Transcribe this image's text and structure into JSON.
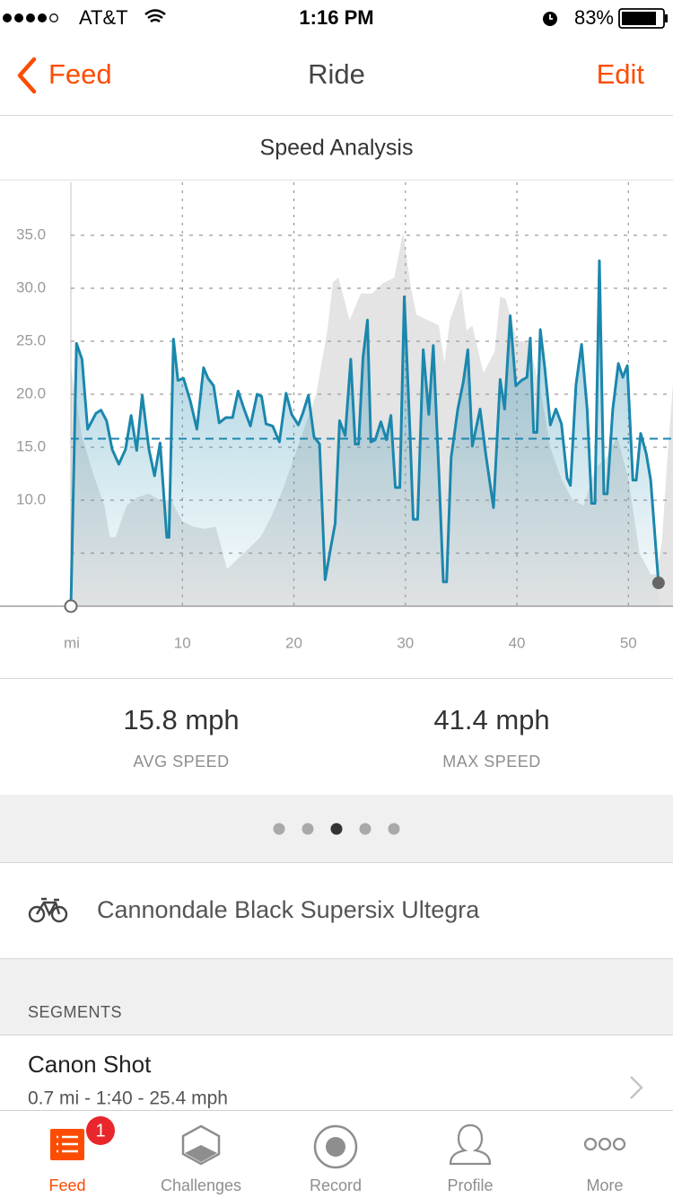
{
  "status_bar": {
    "carrier": "AT&T",
    "time": "1:16 PM",
    "battery": "83%"
  },
  "nav": {
    "back": "Feed",
    "title": "Ride",
    "action": "Edit"
  },
  "chart_data": {
    "type": "line",
    "title": "Speed Analysis",
    "xlim": [
      0,
      54
    ],
    "xticks": [
      {
        "value": 0,
        "label": "mi"
      },
      10,
      20,
      30,
      40,
      50
    ],
    "ylim": [
      0,
      40
    ],
    "yticks": [
      {
        "value": 5,
        "label": null
      },
      {
        "value": 10,
        "label": "10.0"
      },
      {
        "value": 15,
        "label": "15.0"
      },
      {
        "value": 20,
        "label": "20.0"
      },
      {
        "value": 25,
        "label": "25.0"
      },
      {
        "value": 30,
        "label": "30.0"
      },
      {
        "value": 35,
        "label": "35.0"
      }
    ],
    "grid": true,
    "series": [
      {
        "style": "area",
        "color": "#e4e4e4",
        "x": [
          0,
          1,
          2,
          3,
          3.5,
          4,
          5,
          6,
          7,
          8,
          9,
          10,
          11,
          12,
          13,
          14,
          15,
          16,
          17,
          18,
          19,
          20,
          21,
          22,
          23,
          23.5,
          24,
          25,
          26,
          27,
          28,
          29,
          29.8,
          30.5,
          31,
          32,
          33,
          33.5,
          34,
          35,
          35.5,
          36,
          37,
          38,
          38.5,
          39,
          40,
          41,
          42,
          43,
          44,
          45,
          46,
          47,
          48,
          49,
          50,
          51,
          52,
          52.5,
          53,
          53.5,
          54
        ],
        "values": [
          22.5,
          16,
          12.5,
          9.5,
          6.5,
          6.5,
          9.5,
          10.3,
          10.6,
          10,
          10,
          8,
          7.5,
          7.3,
          7.5,
          3.5,
          4.5,
          5.5,
          6.5,
          8.5,
          11,
          14,
          17,
          20,
          26,
          30.6,
          31,
          27,
          29.5,
          29.5,
          30.5,
          31,
          35.3,
          30,
          27.5,
          27,
          26.5,
          23,
          27,
          30,
          26,
          26.5,
          22,
          24,
          29.2,
          29,
          25,
          25,
          21,
          15,
          12,
          10,
          9.5,
          13,
          14,
          16,
          12,
          5,
          3,
          3,
          6,
          14,
          21
        ]
      },
      {
        "style": "line",
        "color": "#1b87ad",
        "x": [
          0,
          0.5,
          1.0,
          1.5,
          2.25,
          2.7,
          3.2,
          3.7,
          4.3,
          4.9,
          5.4,
          5.9,
          6.4,
          7.0,
          7.5,
          8.0,
          8.6,
          8.8,
          9.2,
          9.6,
          10.1,
          10.7,
          11.3,
          11.9,
          12.3,
          12.8,
          13.3,
          13.9,
          14.5,
          15.0,
          15.5,
          16.1,
          16.7,
          17.1,
          17.5,
          18.1,
          18.7,
          19.3,
          19.8,
          20.4,
          20.8,
          21.3,
          21.8,
          22.3,
          22.8,
          23.3,
          23.7,
          24.1,
          24.6,
          25.1,
          25.5,
          25.8,
          26.2,
          26.6,
          26.9,
          27.3,
          27.8,
          28.3,
          28.7,
          29.1,
          29.5,
          29.9,
          30.4,
          30.7,
          31.1,
          31.6,
          32.1,
          32.5,
          33.0,
          33.4,
          33.7,
          34.1,
          34.7,
          35.2,
          35.6,
          36.0,
          36.7,
          37.2,
          37.9,
          38.5,
          38.9,
          39.4,
          39.9,
          40.4,
          40.9,
          41.2,
          41.5,
          41.8,
          42.1,
          42.5,
          43.0,
          43.5,
          44.0,
          44.5,
          44.8,
          45.3,
          45.8,
          46.3,
          46.7,
          47.0,
          47.4,
          47.8,
          48.1,
          48.6,
          49.1,
          49.5,
          49.9,
          50.4,
          50.7,
          51.1,
          51.6,
          52.0,
          52.7
        ],
        "values": [
          0,
          24.8,
          23.3,
          16.7,
          18.2,
          18.5,
          17.5,
          14.8,
          13.4,
          14.8,
          18.0,
          14.7,
          19.9,
          14.8,
          12.3,
          15.4,
          6.5,
          6.5,
          25.2,
          21.3,
          21.5,
          19.4,
          16.7,
          22.5,
          21.5,
          20.8,
          17.3,
          17.8,
          17.8,
          20.3,
          18.7,
          17.0,
          20.0,
          19.8,
          17.2,
          17.0,
          15.5,
          20.1,
          18.1,
          17.1,
          18.2,
          19.9,
          16.0,
          15.3,
          2.5,
          5.5,
          7.8,
          17.5,
          16.1,
          23.3,
          15.3,
          15.3,
          23.5,
          27.0,
          15.5,
          15.7,
          17.4,
          15.7,
          18.0,
          11.2,
          11.2,
          29.2,
          16.7,
          8.2,
          8.2,
          24.2,
          18.1,
          24.6,
          12.7,
          2.3,
          2.3,
          14.0,
          18.6,
          21.2,
          24.2,
          15.1,
          18.6,
          14.4,
          9.3,
          21.4,
          18.6,
          27.4,
          20.8,
          21.3,
          21.6,
          25.3,
          16.4,
          16.4,
          26.1,
          22.5,
          17.1,
          18.6,
          17.2,
          12.1,
          11.4,
          20.9,
          24.7,
          18.6,
          9.7,
          9.7,
          32.6,
          10.6,
          10.6,
          18.6,
          22.9,
          21.6,
          22.7,
          11.9,
          11.9,
          16.3,
          14.4,
          11.9,
          2.2
        ]
      }
    ]
  },
  "stats": [
    {
      "value": 15.8,
      "unit": "mph",
      "label": "AVG SPEED"
    },
    {
      "value": 41.4,
      "unit": "mph",
      "label": "MAX SPEED"
    }
  ],
  "bike": "Cannondale Black Supersix Ultegra",
  "segments": {
    "header": "SEGMENTS",
    "items": [
      {
        "name": "Canon Shot",
        "detail": "0.7 mi - 1:40 - 25.4 mph"
      }
    ]
  },
  "tabs": [
    {
      "label": "Feed",
      "badge": 1
    },
    {
      "label": "Challenges"
    },
    {
      "label": "Record"
    },
    {
      "label": "Profile"
    },
    {
      "label": "More"
    }
  ]
}
